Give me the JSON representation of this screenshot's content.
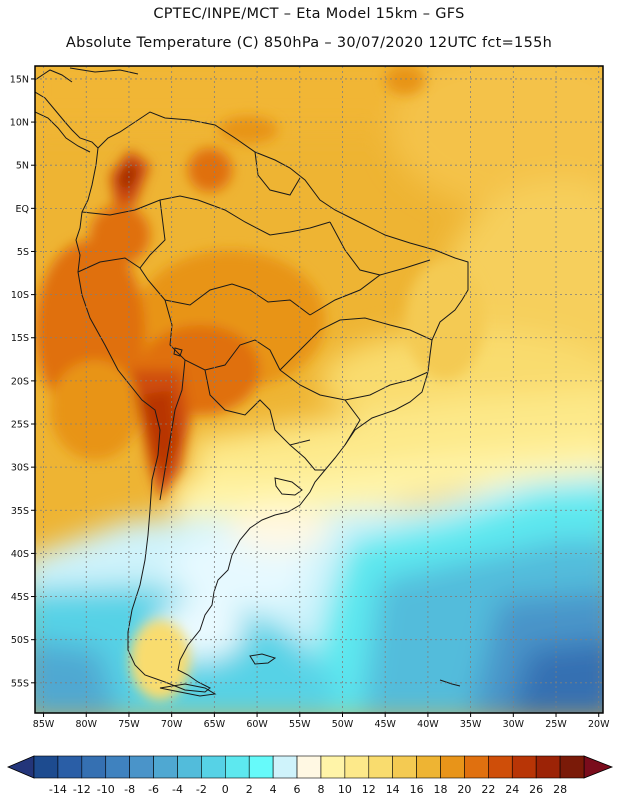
{
  "header": {
    "line1": "CPTEC/INPE/MCT –  Eta Model 15km – GFS",
    "line2": "Absolute Temperature (C) 850hPa – 30/07/2020 12UTC fct=155h"
  },
  "map": {
    "lat_ticks": [
      "15N",
      "10N",
      "5N",
      "EQ",
      "5S",
      "10S",
      "15S",
      "20S",
      "25S",
      "30S",
      "35S",
      "40S",
      "45S",
      "50S",
      "55S"
    ],
    "lon_ticks": [
      "85W",
      "80W",
      "75W",
      "70W",
      "65W",
      "60W",
      "55W",
      "50W",
      "45W",
      "40W",
      "35W",
      "30W",
      "25W",
      "20W"
    ],
    "lat_values": [
      15,
      10,
      5,
      0,
      -5,
      -10,
      -15,
      -20,
      -25,
      -30,
      -35,
      -40,
      -45,
      -50,
      -55
    ],
    "lon_values": [
      -85,
      -80,
      -75,
      -70,
      -65,
      -60,
      -55,
      -50,
      -45,
      -40,
      -35,
      -30,
      -25,
      -20
    ],
    "extent": {
      "lon_min": -86,
      "lon_max": -19.5,
      "lat_min": -58.5,
      "lat_max": 16.5
    }
  },
  "colorbar": {
    "labels": [
      "-14",
      "-12",
      "-10",
      "-8",
      "-6",
      "-4",
      "-2",
      "0",
      "2",
      "4",
      "6",
      "8",
      "10",
      "12",
      "14",
      "16",
      "18",
      "20",
      "22",
      "24",
      "26",
      "28"
    ],
    "colors": [
      "#1d4b8f",
      "#2a5ea6",
      "#3570b2",
      "#3f82bf",
      "#4a94c9",
      "#4fa8d2",
      "#52bcdb",
      "#56d2e6",
      "#5de8ef",
      "#66fafa",
      "#cff3fb",
      "#fff8e3",
      "#fff4a8",
      "#fde98a",
      "#f9dc6e",
      "#f4ca52",
      "#eeb433",
      "#e89419",
      "#e0700f",
      "#cf4e09",
      "#b83506",
      "#9c2306",
      "#7a1a08"
    ],
    "under_color": "#23357a",
    "over_color": "#7a0c1c"
  },
  "colors": {
    "frame": "#000000",
    "grid": "#7f7f7f",
    "coast": "#1a1a1a"
  }
}
